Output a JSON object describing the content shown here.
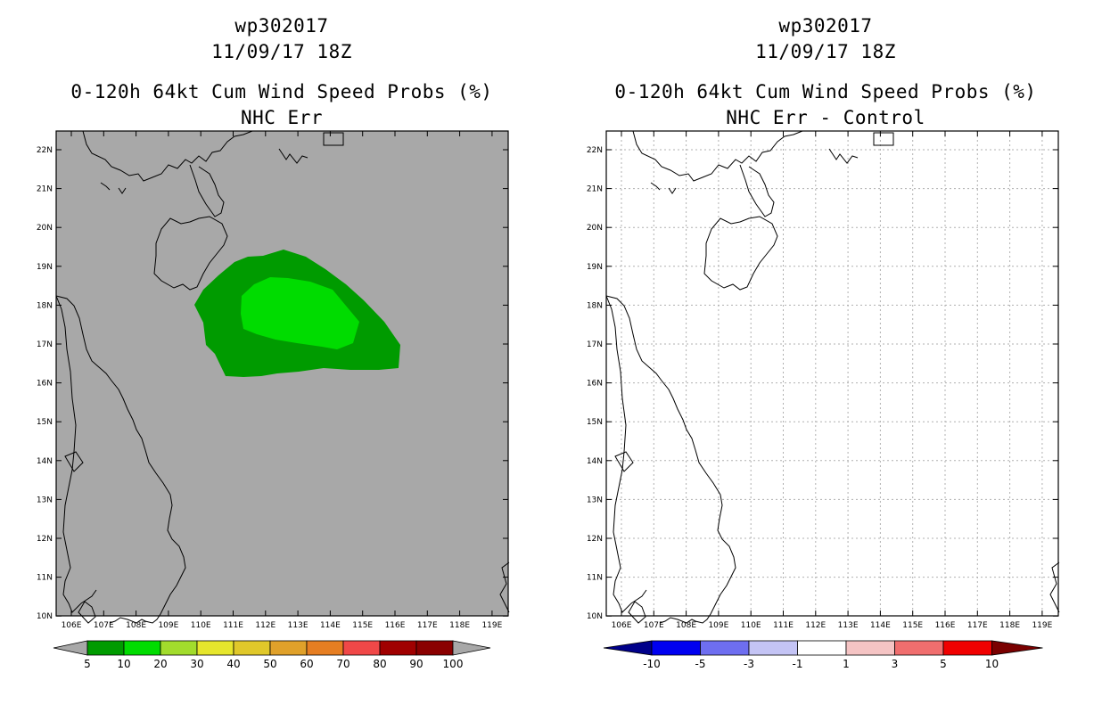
{
  "panels": [
    {
      "id": "left",
      "title_line1": "wp302017",
      "title_line2": "11/09/17 18Z",
      "title_line3": "0-120h 64kt Cum Wind Speed Probs (%)",
      "title_line4": "NHC Err",
      "background": "#a8a8a8",
      "legend_labels": [
        "5",
        "10",
        "20",
        "30",
        "40",
        "50",
        "60",
        "70",
        "80",
        "90",
        "100"
      ],
      "legend_colors": [
        "#009b00",
        "#00dc00",
        "#a2dc2c",
        "#e6e62c",
        "#e0c82a",
        "#e0a12a",
        "#e67e22",
        "#f04848",
        "#a00000",
        "#8a0000",
        "#7800dc"
      ]
    },
    {
      "id": "right",
      "title_line1": "wp302017",
      "title_line2": "11/09/17 18Z",
      "title_line3": "0-120h 64kt Cum Wind Speed Probs (%)",
      "title_line4": "NHC Err - Control",
      "background": "#ffffff",
      "legend_labels": [
        "-10",
        "-5",
        "-3",
        "-1",
        "1",
        "3",
        "5",
        "10"
      ],
      "legend_colors": [
        "#0000b4",
        "#0000f0",
        "#6e6ef0",
        "#c4c4f5",
        "#ffffff",
        "#f5c4c4",
        "#f06e6e",
        "#f00000",
        "#7a0000"
      ],
      "legend_left_arrow_color": "#00008a",
      "legend_right_arrow_color": "#7a0000"
    }
  ],
  "axes": {
    "lon_labels": [
      "106E",
      "107E",
      "108E",
      "109E",
      "110E",
      "111E",
      "112E",
      "113E",
      "114E",
      "115E",
      "116E",
      "117E",
      "118E",
      "119E"
    ],
    "lat_labels": [
      "22N",
      "21N",
      "20N",
      "19N",
      "18N",
      "17N",
      "16N",
      "15N",
      "14N",
      "13N",
      "12N",
      "11N",
      "10N"
    ]
  },
  "prob_colors": {
    "outer": "#009b00",
    "inner": "#00dc00"
  }
}
